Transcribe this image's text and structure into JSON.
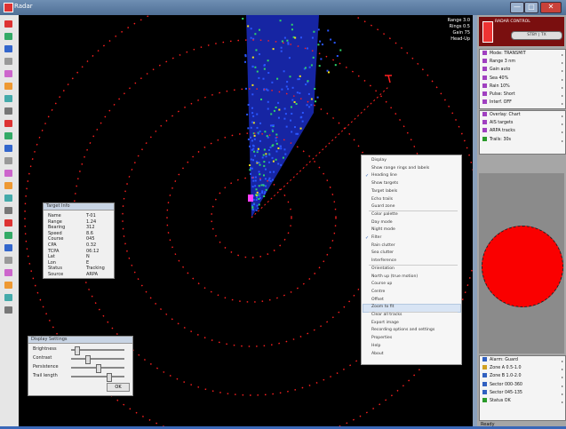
{
  "window": {
    "title": "Radar",
    "min_label": "—",
    "max_label": "□",
    "close_label": "✕"
  },
  "toolbar": {
    "icons": [
      "pointer-icon",
      "zoom-icon",
      "pan-icon",
      "range-icon",
      "ring-icon",
      "target-icon",
      "marker-icon",
      "layer-icon",
      "filter-icon",
      "color-icon",
      "gain-icon",
      "sea-icon",
      "rain-icon",
      "trail-icon",
      "track-icon",
      "heading-icon",
      "north-icon",
      "cursor-icon",
      "measure-icon",
      "ebl-icon",
      "vrm-icon",
      "record-icon",
      "play-icon",
      "settings-icon"
    ]
  },
  "radar": {
    "readout": [
      "Range 3.0",
      "Rings 0.5",
      "Gain 75",
      "Head-Up"
    ],
    "colors": {
      "background": "#000000",
      "ring": "#ff2020",
      "echo_low": "#1a2cc0",
      "echo_mid": "#2fd46a",
      "echo_high": "#f5e31a",
      "echo_peak": "#ff40ff"
    }
  },
  "info_dialog": {
    "title": "Target Info",
    "rows": [
      {
        "label": "Name",
        "value": "T-01"
      },
      {
        "label": "Range",
        "value": "1.24"
      },
      {
        "label": "Bearing",
        "value": "312"
      },
      {
        "label": "Speed",
        "value": "8.6"
      },
      {
        "label": "Course",
        "value": "045"
      },
      {
        "label": "CPA",
        "value": "0.32"
      },
      {
        "label": "TCPA",
        "value": "06:12"
      },
      {
        "label": "Lat",
        "value": "N"
      },
      {
        "label": "Lon",
        "value": "E"
      },
      {
        "label": "Status",
        "value": "Tracking"
      },
      {
        "label": "Source",
        "value": "ARPA"
      }
    ]
  },
  "slider_dialog": {
    "title": "Display Settings",
    "rows": [
      {
        "label": "Brightness"
      },
      {
        "label": "Contrast"
      },
      {
        "label": "Persistence"
      },
      {
        "label": "Trail length"
      }
    ],
    "ok_label": "OK"
  },
  "context_menu": {
    "items": [
      {
        "label": "Display",
        "checked": false
      },
      {
        "label": "Show range rings and labels",
        "checked": false
      },
      {
        "label": "Heading line",
        "checked": true
      },
      {
        "label": "Show targets",
        "checked": false
      },
      {
        "label": "Target labels",
        "checked": false
      },
      {
        "label": "Echo trails",
        "checked": false
      },
      {
        "label": "Guard zone",
        "checked": false
      },
      {
        "label": "Color palette",
        "checked": false
      },
      {
        "label": "Day mode",
        "checked": false
      },
      {
        "label": "Night mode",
        "checked": false
      },
      {
        "label": "Filter",
        "checked": true
      },
      {
        "label": "Rain clutter",
        "checked": false
      },
      {
        "label": "Sea clutter",
        "checked": false
      },
      {
        "label": "Interference",
        "checked": false
      },
      {
        "label": "Orientation",
        "checked": false
      },
      {
        "label": "North up (true motion)",
        "checked": false
      },
      {
        "label": "Course up",
        "checked": false
      },
      {
        "label": "Centre",
        "checked": false
      },
      {
        "label": "Offset",
        "checked": false
      },
      {
        "label": "Zoom to fit",
        "checked": false
      },
      {
        "label": "Clear all tracks",
        "checked": false
      },
      {
        "label": "Export image",
        "checked": false
      },
      {
        "label": "Recording options and settings",
        "checked": false
      },
      {
        "label": "Properties",
        "checked": false
      },
      {
        "label": "Help",
        "checked": false
      },
      {
        "label": "About",
        "checked": false
      }
    ],
    "highlight_index": 19
  },
  "right_panel": {
    "header_lines": [
      "RADAR CONTROL",
      "STBY",
      "TX"
    ],
    "toggle_label": "STBY | TX",
    "group1": [
      {
        "label": "Mode: TRANSMIT",
        "color": "#a040c0"
      },
      {
        "label": "Range 3 nm",
        "color": "#a040c0"
      },
      {
        "label": "Gain auto",
        "color": "#a040c0"
      },
      {
        "label": "Sea 40%",
        "color": "#a040c0"
      },
      {
        "label": "Rain 10%",
        "color": "#a040c0"
      },
      {
        "label": "Pulse: Short",
        "color": "#a040c0"
      },
      {
        "label": "Interf. OFF",
        "color": "#a040c0"
      }
    ],
    "group2": [
      {
        "label": "Overlay: Chart",
        "color": "#a040c0"
      },
      {
        "label": "AIS targets",
        "color": "#a040c0"
      },
      {
        "label": "ARPA tracks",
        "color": "#a040c0"
      },
      {
        "label": "Trails: 30s",
        "color": "#2a9a2a"
      }
    ],
    "group3": [
      {
        "label": "Alarm: Guard",
        "color": "#3060c0"
      },
      {
        "label": "Zone A 0.5-1.0",
        "color": "#d0a020"
      },
      {
        "label": "Zone B 1.0-2.0",
        "color": "#3060c0"
      },
      {
        "label": "Sector 000-360",
        "color": "#3060c0"
      },
      {
        "label": "Sector 045-135",
        "color": "#3060c0"
      },
      {
        "label": "Status OK",
        "color": "#2a9a2a"
      }
    ],
    "footer": "Ready",
    "indicator_color": "#fa0000"
  }
}
